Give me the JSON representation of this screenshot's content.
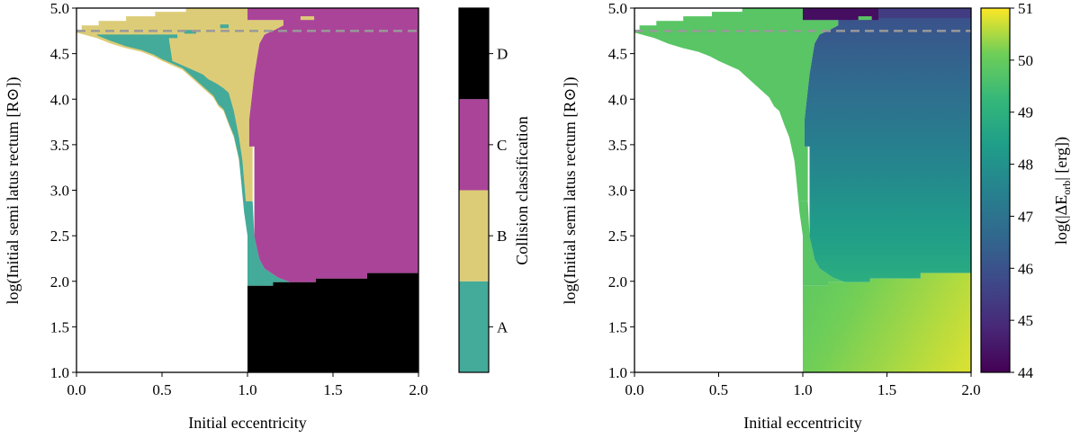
{
  "chart_data": [
    {
      "type": "heatmap",
      "panel": "left",
      "xlabel": "Initial eccentricity",
      "ylabel": "log(Initial semi latus rectum [R⊙])",
      "xlim": [
        0,
        2
      ],
      "ylim": [
        1,
        5
      ],
      "xticks": [
        "0.0",
        "0.5",
        "1.0",
        "1.5",
        "2.0"
      ],
      "yticks": [
        "1.0",
        "1.5",
        "2.0",
        "2.5",
        "3.0",
        "3.5",
        "4.0",
        "4.5",
        "5.0"
      ],
      "reference_line": {
        "y": 4.75,
        "style": "dashed",
        "color": "#999999"
      },
      "colorbar": {
        "label": "Collision classification",
        "categories": [
          "A",
          "B",
          "C",
          "D"
        ],
        "colors": {
          "A": "#44aa99",
          "B": "#ddcc77",
          "C": "#aa4499",
          "D": "#000000"
        }
      },
      "regions": [
        {
          "class": "B",
          "vertices": [
            [
              0.03,
              4.76
            ],
            [
              0.03,
              4.81
            ],
            [
              0.13,
              4.81
            ],
            [
              0.13,
              4.86
            ],
            [
              0.29,
              4.86
            ],
            [
              0.29,
              4.91
            ],
            [
              0.46,
              4.91
            ],
            [
              0.46,
              4.96
            ],
            [
              0.64,
              4.96
            ],
            [
              0.64,
              5.0
            ],
            [
              1.0,
              5.0
            ],
            [
              1.0,
              4.87
            ],
            [
              1.21,
              4.87
            ],
            [
              1.21,
              4.81
            ],
            [
              1.16,
              4.76
            ],
            [
              1.1,
              4.71
            ],
            [
              1.07,
              4.61
            ],
            [
              1.04,
              4.27
            ],
            [
              1.01,
              3.77
            ],
            [
              1.01,
              3.48
            ],
            [
              1.03,
              3.48
            ],
            [
              1.03,
              2.88
            ],
            [
              0.98,
              2.88
            ],
            [
              0.95,
              3.33
            ],
            [
              0.92,
              3.58
            ],
            [
              0.89,
              3.72
            ],
            [
              0.86,
              3.87
            ],
            [
              0.83,
              3.92
            ],
            [
              0.8,
              4.02
            ],
            [
              0.74,
              4.12
            ],
            [
              0.68,
              4.22
            ],
            [
              0.62,
              4.32
            ],
            [
              0.56,
              4.37
            ],
            [
              0.5,
              4.42
            ],
            [
              0.45,
              4.47
            ],
            [
              0.38,
              4.52
            ],
            [
              0.29,
              4.56
            ],
            [
              0.2,
              4.61
            ],
            [
              0.12,
              4.67
            ],
            [
              0.0,
              4.73
            ],
            [
              0.0,
              4.76
            ]
          ]
        },
        {
          "class": "A",
          "vertices": [
            [
              0.12,
              4.7
            ],
            [
              0.2,
              4.64
            ],
            [
              0.29,
              4.58
            ],
            [
              0.38,
              4.54
            ],
            [
              0.45,
              4.49
            ],
            [
              0.5,
              4.44
            ],
            [
              0.56,
              4.39
            ],
            [
              0.62,
              4.34
            ],
            [
              0.68,
              4.24
            ],
            [
              0.74,
              4.14
            ],
            [
              0.8,
              4.04
            ],
            [
              0.83,
              3.94
            ],
            [
              0.86,
              3.89
            ],
            [
              0.89,
              3.74
            ],
            [
              0.92,
              3.6
            ],
            [
              0.95,
              3.35
            ],
            [
              0.98,
              2.76
            ],
            [
              1.0,
              2.5
            ],
            [
              1.0,
              1.95
            ],
            [
              1.15,
              1.95
            ],
            [
              1.15,
              1.99
            ],
            [
              1.25,
              1.99
            ],
            [
              1.18,
              2.04
            ],
            [
              1.1,
              2.14
            ],
            [
              1.07,
              2.24
            ],
            [
              1.04,
              2.49
            ],
            [
              1.03,
              2.88
            ],
            [
              0.99,
              2.88
            ],
            [
              0.97,
              3.33
            ],
            [
              0.95,
              3.58
            ],
            [
              0.92,
              3.87
            ],
            [
              0.89,
              4.07
            ],
            [
              0.86,
              4.12
            ],
            [
              0.82,
              4.17
            ],
            [
              0.77,
              4.22
            ],
            [
              0.74,
              4.27
            ],
            [
              0.68,
              4.32
            ],
            [
              0.62,
              4.37
            ],
            [
              0.56,
              4.42
            ],
            [
              0.54,
              4.67
            ],
            [
              0.59,
              4.67
            ],
            [
              0.59,
              4.71
            ],
            [
              0.12,
              4.71
            ]
          ]
        },
        {
          "class": "A",
          "vertices": [
            [
              0.84,
              4.78
            ],
            [
              0.89,
              4.78
            ],
            [
              0.89,
              4.82
            ],
            [
              0.84,
              4.82
            ]
          ]
        },
        {
          "class": "A",
          "vertices": [
            [
              0.63,
              4.72
            ],
            [
              0.7,
              4.72
            ],
            [
              0.7,
              4.76
            ],
            [
              0.63,
              4.76
            ]
          ]
        },
        {
          "class": "C",
          "vertices": [
            [
              1.0,
              5.0
            ],
            [
              2.0,
              5.0
            ],
            [
              2.0,
              2.09
            ],
            [
              1.7,
              2.09
            ],
            [
              1.7,
              2.03
            ],
            [
              1.4,
              2.03
            ],
            [
              1.4,
              1.99
            ],
            [
              1.25,
              1.99
            ],
            [
              1.18,
              2.04
            ],
            [
              1.1,
              2.14
            ],
            [
              1.07,
              2.24
            ],
            [
              1.04,
              2.49
            ],
            [
              1.04,
              3.48
            ],
            [
              1.01,
              3.48
            ],
            [
              1.01,
              3.77
            ],
            [
              1.04,
              4.27
            ],
            [
              1.07,
              4.61
            ],
            [
              1.1,
              4.71
            ],
            [
              1.16,
              4.76
            ],
            [
              1.21,
              4.81
            ],
            [
              1.21,
              4.87
            ],
            [
              1.0,
              4.87
            ]
          ]
        },
        {
          "class": "B",
          "vertices": [
            [
              1.31,
              4.87
            ],
            [
              1.39,
              4.87
            ],
            [
              1.39,
              4.91
            ],
            [
              1.31,
              4.91
            ]
          ]
        },
        {
          "class": "D",
          "vertices": [
            [
              1.0,
              1.0
            ],
            [
              2.0,
              1.0
            ],
            [
              2.0,
              2.09
            ],
            [
              1.7,
              2.09
            ],
            [
              1.7,
              2.03
            ],
            [
              1.4,
              2.03
            ],
            [
              1.4,
              1.99
            ],
            [
              1.15,
              1.99
            ],
            [
              1.15,
              1.95
            ],
            [
              1.0,
              1.95
            ]
          ]
        }
      ]
    },
    {
      "type": "heatmap",
      "panel": "right",
      "xlabel": "Initial eccentricity",
      "ylabel": "log(Initial semi latus rectum [R⊙])",
      "xlim": [
        0,
        2
      ],
      "ylim": [
        1,
        5
      ],
      "xticks": [
        "0.0",
        "0.5",
        "1.0",
        "1.5",
        "2.0"
      ],
      "yticks": [
        "1.0",
        "1.5",
        "2.0",
        "2.5",
        "3.0",
        "3.5",
        "4.0",
        "4.5",
        "5.0"
      ],
      "reference_line": {
        "y": 4.75,
        "style": "dashed",
        "color": "#999999"
      },
      "colorbar": {
        "label_prefix": "log(|ΔE",
        "label_sub": "orb",
        "label_suffix": "| [erg])",
        "colormap": "viridis",
        "range": [
          44,
          51
        ],
        "ticks": [
          "44",
          "45",
          "46",
          "47",
          "48",
          "49",
          "50",
          "51"
        ]
      },
      "values": {
        "classes_A_B": 49.8,
        "class_C": {
          "at_logp_5.0": 45.9,
          "at_logp_2.0": 48.9
        },
        "class_C_top_strip": {
          "e_1.0_to_1.45": 44.3,
          "e_1.45_to_2.0": 45.4
        },
        "class_D": {
          "at_e1_logp2": 49.9,
          "at_e2_logp1": 50.8
        }
      }
    }
  ]
}
